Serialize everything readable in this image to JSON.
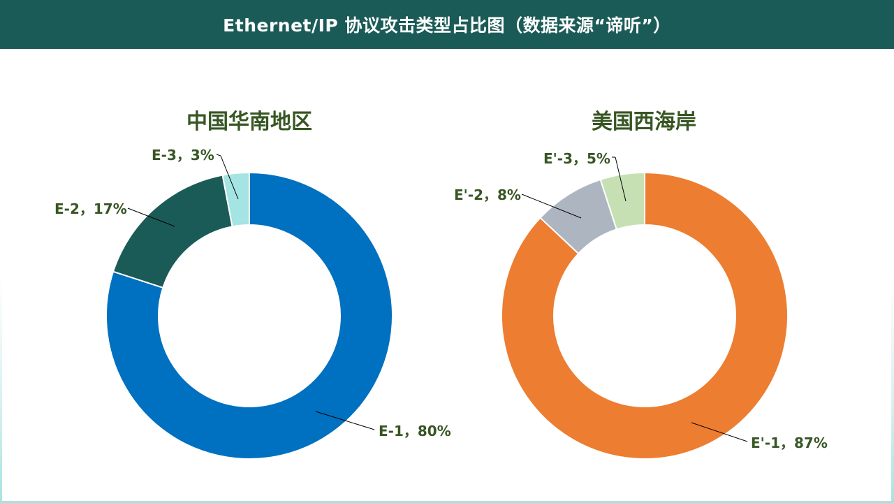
{
  "header": {
    "title": "Ethernet/IP 协议攻击类型占比图（数据来源“谛听”）"
  },
  "chart_data": [
    {
      "type": "pie",
      "donut": true,
      "title": "中国华南地区",
      "slices": [
        {
          "label": "E-1，80%",
          "value": 80,
          "color": "#0070c0"
        },
        {
          "label": "E-2，17%",
          "value": 17,
          "color": "#1b5b57"
        },
        {
          "label": "E-3，3%",
          "value": 3,
          "color": "#a4e4e2"
        }
      ]
    },
    {
      "type": "pie",
      "donut": true,
      "title": "美国西海岸",
      "slices": [
        {
          "label": "E'-1，87%",
          "value": 87,
          "color": "#ed7d31"
        },
        {
          "label": "E'-2，8%",
          "value": 8,
          "color": "#adb5c1"
        },
        {
          "label": "E'-3，5%",
          "value": 5,
          "color": "#c6e0b4"
        }
      ]
    }
  ]
}
